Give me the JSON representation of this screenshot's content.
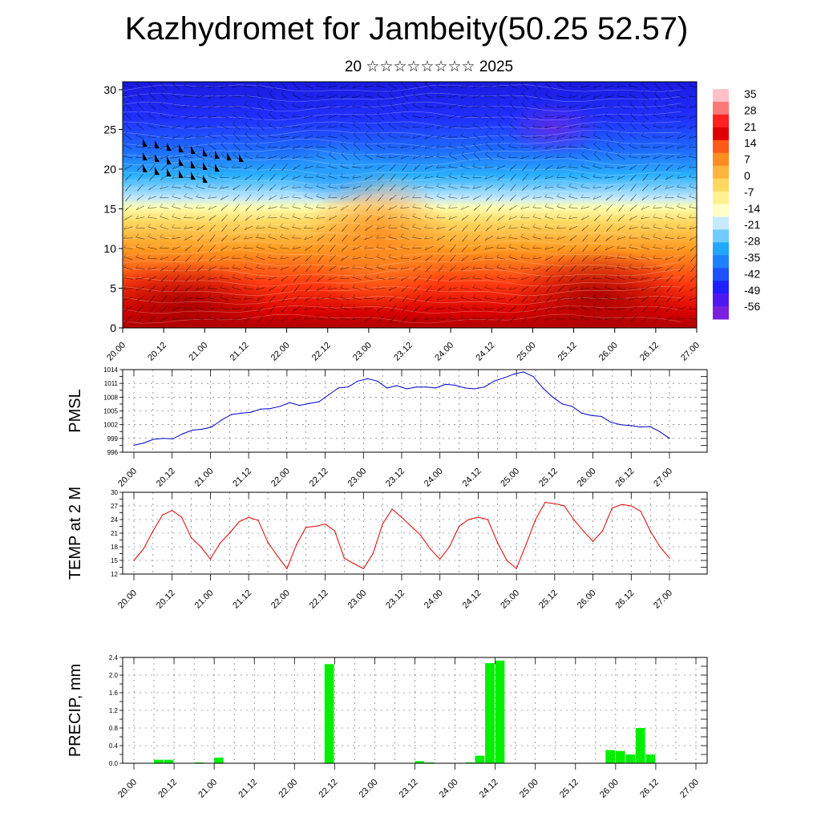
{
  "header": {
    "title": "Kazhydromet for Jambeity(50.25 52.57)",
    "subtitle": "20 ☆☆☆☆☆☆☆☆ 2025"
  },
  "time_ticks": [
    "20.00",
    "20.12",
    "21.00",
    "21.12",
    "22.00",
    "22.12",
    "23.00",
    "23.12",
    "24.00",
    "24.12",
    "25.00",
    "25.12",
    "26.00",
    "26.12",
    "27.00"
  ],
  "chart_data": [
    {
      "type": "heatmap",
      "ylabel": "",
      "ylim": [
        0,
        31
      ],
      "y_ticks": [
        0,
        5,
        10,
        15,
        20,
        25,
        30
      ],
      "x_ticks": [
        "20.00",
        "20.12",
        "21.00",
        "21.12",
        "22.00",
        "22.12",
        "23.00",
        "23.12",
        "24.00",
        "24.12",
        "25.00",
        "25.12",
        "26.00",
        "26.12",
        "27.00"
      ],
      "colorbar_labels": [
        "35",
        "28",
        "21",
        "14",
        "7",
        "0",
        "-7",
        "-14",
        "-21",
        "-28",
        "-35",
        "-42",
        "-49",
        "-56"
      ],
      "colorbar_range": [
        -60,
        38
      ],
      "colorscale": [
        "#7a20e0",
        "#2020ff",
        "#1e6cff",
        "#20a8ff",
        "#9ed8ff",
        "#ffffc0",
        "#ffe07a",
        "#ffae30",
        "#ff6420",
        "#ee1414",
        "#c00000",
        "#ffb0b0"
      ],
      "overlay": "wind barbs"
    },
    {
      "type": "line",
      "ylabel": "PMSL",
      "ylim": [
        996,
        1014
      ],
      "y_ticks": [
        996,
        999,
        1002,
        1005,
        1008,
        1011,
        1014
      ],
      "series_color": "#0000cc",
      "x_ticks": [
        "20.00",
        "20.12",
        "21.00",
        "21.12",
        "22.00",
        "22.12",
        "23.00",
        "23.12",
        "24.00",
        "24.12",
        "25.00",
        "25.12",
        "26.00",
        "26.12",
        "27.00"
      ],
      "values": [
        997.5,
        998.0,
        998.8,
        999.0,
        998.9,
        1000.0,
        1000.8,
        1001.0,
        1001.5,
        1003.0,
        1004.2,
        1004.5,
        1004.7,
        1005.4,
        1005.5,
        1006.0,
        1006.8,
        1006.2,
        1006.6,
        1007.0,
        1008.5,
        1010.0,
        1010.2,
        1011.5,
        1012.0,
        1011.5,
        1010.0,
        1010.5,
        1009.8,
        1010.2,
        1010.2,
        1010.0,
        1010.8,
        1010.6,
        1010.0,
        1009.8,
        1010.2,
        1011.5,
        1012.2,
        1013.0,
        1013.5,
        1012.5,
        1010.0,
        1008.0,
        1006.5,
        1006.0,
        1004.5,
        1004.0,
        1003.8,
        1002.5,
        1002.0,
        1001.8,
        1001.5,
        1001.6,
        1000.5,
        999.0
      ]
    },
    {
      "type": "line",
      "ylabel": "TEMP at 2 M",
      "ylim": [
        12,
        30
      ],
      "y_ticks": [
        12,
        15,
        18,
        21,
        24,
        27,
        30
      ],
      "series_color": "#dd0000",
      "x_ticks": [
        "20.00",
        "20.12",
        "21.00",
        "21.12",
        "22.00",
        "22.12",
        "23.00",
        "23.12",
        "24.00",
        "24.12",
        "25.00",
        "25.12",
        "26.00",
        "26.12",
        "27.00"
      ],
      "values": [
        15.0,
        17.5,
        21.5,
        25.0,
        26.0,
        24.5,
        20.0,
        18.0,
        15.3,
        18.8,
        21.0,
        23.5,
        24.5,
        23.8,
        19.0,
        16.0,
        13.2,
        18.5,
        22.3,
        22.5,
        23.0,
        21.5,
        15.5,
        14.3,
        13.2,
        16.5,
        23.0,
        26.3,
        24.5,
        22.5,
        20.5,
        17.5,
        15.3,
        18.0,
        22.5,
        24.0,
        24.5,
        24.0,
        19.0,
        15.0,
        13.2,
        18.5,
        24.0,
        27.8,
        27.5,
        27.0,
        24.0,
        21.5,
        19.2,
        21.5,
        26.5,
        27.3,
        27.0,
        25.8,
        21.5,
        18.0,
        15.5
      ]
    },
    {
      "type": "bar",
      "ylabel": "PRECIP, mm",
      "ylim": [
        0,
        2.4
      ],
      "y_ticks": [
        "0.0",
        "0.4",
        "0.8",
        "1.2",
        "1.6",
        "2.0",
        "2.4"
      ],
      "series_color": "#00f000",
      "x_ticks": [
        "20.00",
        "20.12",
        "21.00",
        "21.12",
        "22.00",
        "22.12",
        "23.00",
        "23.12",
        "24.00",
        "24.12",
        "25.00",
        "25.12",
        "26.00",
        "26.12",
        "27.00"
      ],
      "values": [
        0,
        0,
        0.08,
        0.08,
        0,
        0,
        0.02,
        0,
        0.13,
        0,
        0,
        0,
        0,
        0,
        0,
        0,
        0,
        0,
        0,
        2.25,
        0,
        0,
        0,
        0,
        0,
        0,
        0,
        0,
        0.05,
        0.02,
        0,
        0,
        0,
        0.02,
        0.17,
        2.27,
        2.33,
        0,
        0,
        0,
        0,
        0,
        0,
        0,
        0.01,
        0,
        0,
        0.3,
        0.28,
        0.2,
        0.8,
        0.2,
        0,
        0,
        0,
        0
      ]
    }
  ]
}
